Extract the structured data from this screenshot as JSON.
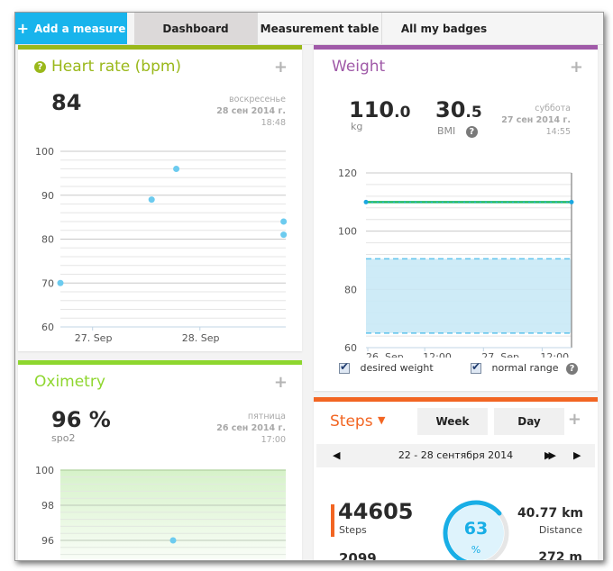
{
  "toolbar": {
    "add_label": "Add a measure",
    "tabs": [
      {
        "label": "Dashboard",
        "active": true
      },
      {
        "label": "Measurement table",
        "active": false
      },
      {
        "label": "All my badges",
        "active": false
      }
    ]
  },
  "colors": {
    "accent": "#18b4ec",
    "heart": "#9ab81a",
    "weight": "#a05aa8",
    "oximetry": "#8ed62e",
    "steps": "#f26522",
    "point": "#6ccbef"
  },
  "heart_rate": {
    "title": "Heart rate (bpm)",
    "value": "84",
    "day": "воскресенье",
    "date": "28 сен 2014 г.",
    "time": "18:48"
  },
  "weight": {
    "title": "Weight",
    "value_int": "110",
    "value_dec": ".0",
    "unit": "kg",
    "bmi_int": "30",
    "bmi_dec": ".5",
    "bmi_label": "BMI",
    "day": "суббота",
    "date": "27 сен 2014 г.",
    "time": "14:55",
    "legend": {
      "desired": "desired weight",
      "normal": "normal range"
    }
  },
  "oximetry": {
    "title": "Oximetry",
    "value": "96 %",
    "unit": "spo2",
    "day": "пятница",
    "date": "26 сен 2014 г.",
    "time": "17:00"
  },
  "steps": {
    "title": "Steps",
    "week_label": "Week",
    "day_label": "Day",
    "range": "22 - 28 сентября 2014",
    "count": "44605",
    "count_label": "Steps",
    "secondary": "2099",
    "percent": "63",
    "percent_sign": "%",
    "percent_value": 63,
    "distance": "40.77 km",
    "distance_label": "Distance",
    "elevation": "272 m"
  },
  "chart_data": [
    {
      "type": "scatter",
      "title": "Heart rate (bpm)",
      "ylim": [
        60,
        100
      ],
      "yticks": [
        60,
        70,
        80,
        90,
        100
      ],
      "xticks": [
        "27. Sep",
        "28. Sep"
      ],
      "xrange_days": [
        26.7,
        28.8
      ],
      "points": [
        {
          "x": 26.7,
          "y": 70
        },
        {
          "x": 27.55,
          "y": 89
        },
        {
          "x": 27.78,
          "y": 96
        },
        {
          "x": 28.78,
          "y": 84
        },
        {
          "x": 28.78,
          "y": 81
        }
      ]
    },
    {
      "type": "line",
      "title": "Weight",
      "ylim": [
        60,
        120
      ],
      "yticks": [
        60,
        80,
        100,
        120
      ],
      "xticks": [
        "26. Sep",
        "12:00",
        "27. Sep",
        "12:00"
      ],
      "xrange_hours": [
        0,
        42
      ],
      "series": [
        {
          "name": "weight",
          "points": [
            {
              "x": 0,
              "y": 110
            },
            {
              "x": 42,
              "y": 110
            }
          ]
        },
        {
          "name": "desired weight",
          "values": [
            110
          ]
        }
      ],
      "normal_range": [
        65,
        90.5
      ]
    },
    {
      "type": "scatter",
      "title": "Oximetry",
      "ylim": [
        94,
        100
      ],
      "yticks": [
        96,
        98,
        100
      ],
      "normal_band": [
        94,
        100
      ],
      "points": [
        {
          "x": 0.5,
          "y": 96
        }
      ]
    }
  ]
}
